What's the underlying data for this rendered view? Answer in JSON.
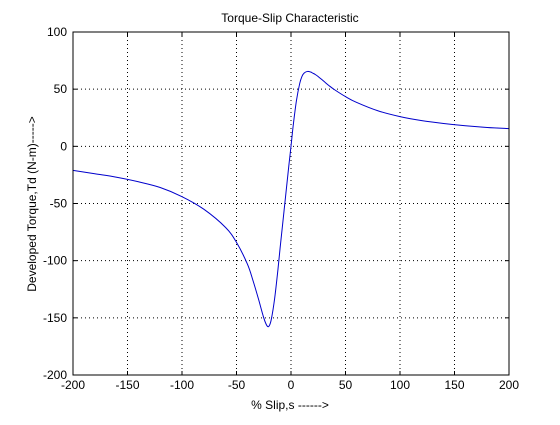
{
  "chart_data": {
    "type": "line",
    "title": "Torque-Slip Characteristic",
    "xlabel": "% Slip,s ------>",
    "ylabel": "Developed Torque,Td (N-m)----->",
    "xlim": [
      -200,
      200
    ],
    "ylim": [
      -200,
      100
    ],
    "xticks": [
      "-200",
      "-150",
      "-100",
      "-50",
      "0",
      "50",
      "100",
      "150",
      "200"
    ],
    "yticks": [
      "100",
      "50",
      "0",
      "-50",
      "-100",
      "-150",
      "-200"
    ],
    "grid": true,
    "line_color": "#0000cc",
    "series": [
      {
        "x": [
          -200,
          -180,
          -160,
          -140,
          -120,
          -100,
          -80,
          -60,
          -50,
          -40,
          -35,
          -30,
          -25,
          -22,
          -20,
          -18,
          -15,
          -12,
          -10,
          -8,
          -5,
          -2,
          0,
          2,
          5,
          8,
          10,
          12,
          15,
          18,
          20,
          22,
          25,
          30,
          35,
          40,
          50,
          60,
          80,
          100,
          120,
          140,
          160,
          180,
          200
        ],
        "y": [
          -21,
          -24,
          -27,
          -31,
          -36,
          -44,
          -55,
          -71,
          -84,
          -103,
          -117,
          -133,
          -150,
          -157,
          -157,
          -151,
          -133,
          -108,
          -89,
          -71,
          -44,
          -17,
          0,
          18,
          40,
          55,
          61,
          64,
          65.5,
          65,
          64,
          63,
          61,
          57,
          53,
          49.5,
          43.5,
          38.5,
          31,
          26,
          22.5,
          20,
          18,
          16.5,
          15.5
        ]
      }
    ]
  }
}
